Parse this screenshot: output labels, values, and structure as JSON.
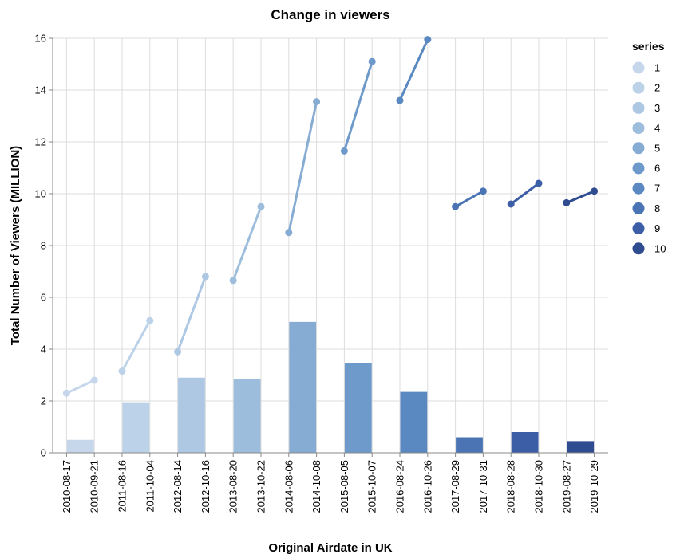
{
  "chart_data": {
    "type": "bar+line",
    "title": "Change in viewers",
    "xlabel": "Original Airdate in UK",
    "ylabel": "Total Number of Viewers (MILLION)",
    "ylim": [
      0,
      16
    ],
    "yticks": [
      0,
      2,
      4,
      6,
      8,
      10,
      12,
      14,
      16
    ],
    "grid": true,
    "legend": {
      "title": "series",
      "placement": "right"
    },
    "categories": [
      "2010-08-17",
      "2010-09-21",
      "2011-08-16",
      "2011-10-04",
      "2012-08-14",
      "2012-10-16",
      "2013-08-20",
      "2013-10-22",
      "2014-08-06",
      "2014-10-08",
      "2015-08-05",
      "2015-10-07",
      "2016-08-24",
      "2016-10-26",
      "2017-08-29",
      "2017-10-31",
      "2018-08-28",
      "2018-10-30",
      "2019-08-27",
      "2019-10-29"
    ],
    "series": [
      {
        "name": "1",
        "color": "#c6d7ec",
        "premiere": "2010-08-17",
        "finale": "2010-09-21",
        "premiere_viewers": 2.3,
        "finale_viewers": 2.8,
        "change": 0.5
      },
      {
        "name": "2",
        "color": "#bcd2e9",
        "premiere": "2011-08-16",
        "finale": "2011-10-04",
        "premiere_viewers": 3.15,
        "finale_viewers": 5.1,
        "change": 1.95
      },
      {
        "name": "3",
        "color": "#aec8e3",
        "premiere": "2012-08-14",
        "finale": "2012-10-16",
        "premiere_viewers": 3.9,
        "finale_viewers": 6.8,
        "change": 2.9
      },
      {
        "name": "4",
        "color": "#9dbddd",
        "premiere": "2013-08-20",
        "finale": "2013-10-22",
        "premiere_viewers": 6.65,
        "finale_viewers": 9.5,
        "change": 2.85
      },
      {
        "name": "5",
        "color": "#87acd3",
        "premiere": "2014-08-06",
        "finale": "2014-10-08",
        "premiere_viewers": 8.5,
        "finale_viewers": 13.55,
        "change": 5.05
      },
      {
        "name": "6",
        "color": "#6e9acb",
        "premiere": "2015-08-05",
        "finale": "2015-10-07",
        "premiere_viewers": 11.65,
        "finale_viewers": 15.1,
        "change": 3.45
      },
      {
        "name": "7",
        "color": "#5a88c0",
        "premiere": "2016-08-24",
        "finale": "2016-10-26",
        "premiere_viewers": 13.6,
        "finale_viewers": 15.95,
        "change": 2.35
      },
      {
        "name": "8",
        "color": "#4a74b4",
        "premiere": "2017-08-29",
        "finale": "2017-10-31",
        "premiere_viewers": 9.5,
        "finale_viewers": 10.1,
        "change": 0.6
      },
      {
        "name": "9",
        "color": "#3b5ea6",
        "premiere": "2018-08-28",
        "finale": "2018-10-30",
        "premiere_viewers": 9.6,
        "finale_viewers": 10.4,
        "change": 0.8
      },
      {
        "name": "10",
        "color": "#2f4c91",
        "premiere": "2019-08-27",
        "finale": "2019-10-29",
        "premiere_viewers": 9.65,
        "finale_viewers": 10.1,
        "change": 0.45
      }
    ]
  }
}
